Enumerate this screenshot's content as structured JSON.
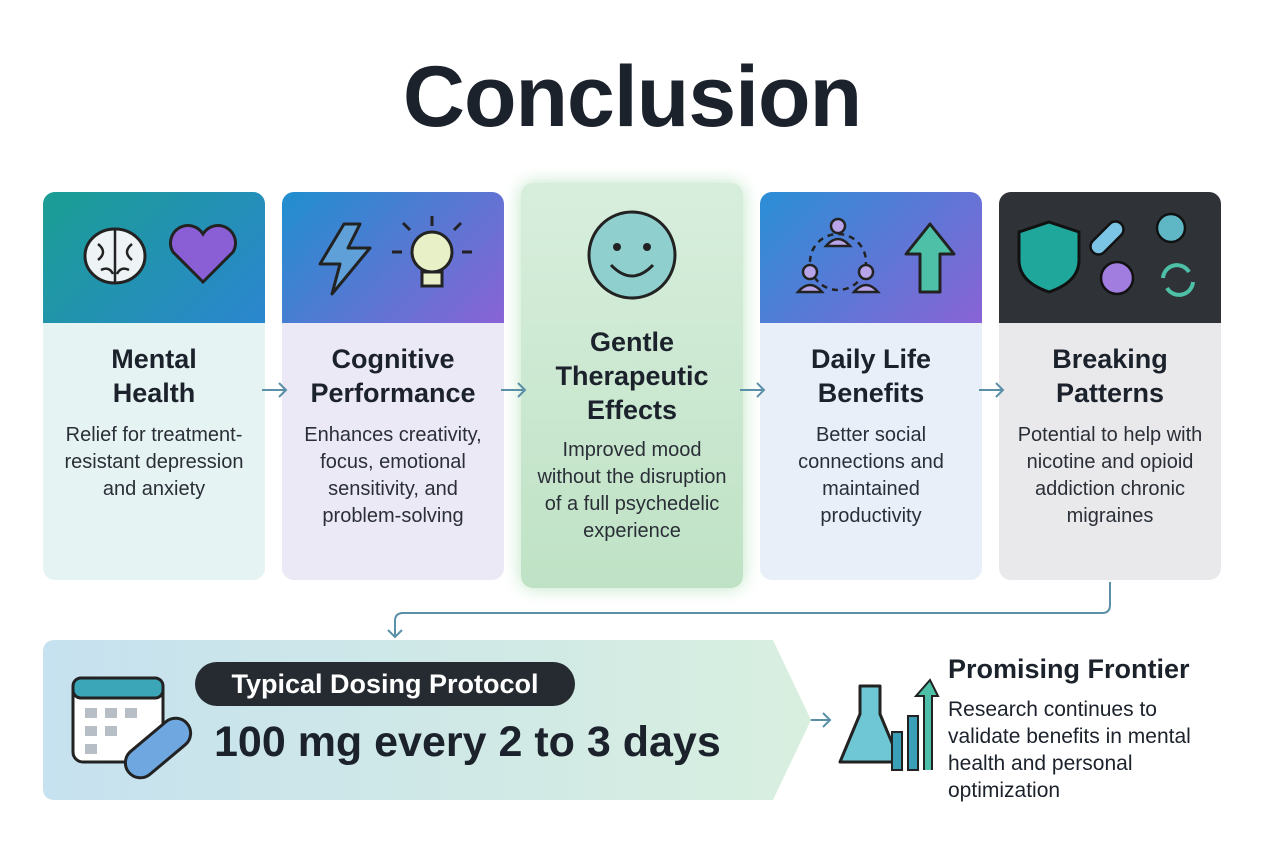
{
  "title": "Conclusion",
  "cards": [
    {
      "title": "Mental Health",
      "text": "Relief for treatment-resistant depression and anxiety"
    },
    {
      "title": "Cognitive Performance",
      "text": "Enhances creativity, focus, emotional sensitivity, and problem-solving"
    },
    {
      "title": "Gentle Therapeutic Effects",
      "text": "Improved mood without the disruption of a full psychedelic experience"
    },
    {
      "title": "Daily Life Benefits",
      "text": "Better social connections and maintained productivity"
    },
    {
      "title": "Breaking Patterns",
      "text": "Potential to help with nicotine and opioid addiction chronic migraines"
    }
  ],
  "dosing": {
    "label": "Typical Dosing Protocol",
    "text": "100 mg every 2 to 3 days"
  },
  "frontier": {
    "title": "Promising Frontier",
    "text": "Research continues to validate benefits in mental health and personal optimization"
  }
}
